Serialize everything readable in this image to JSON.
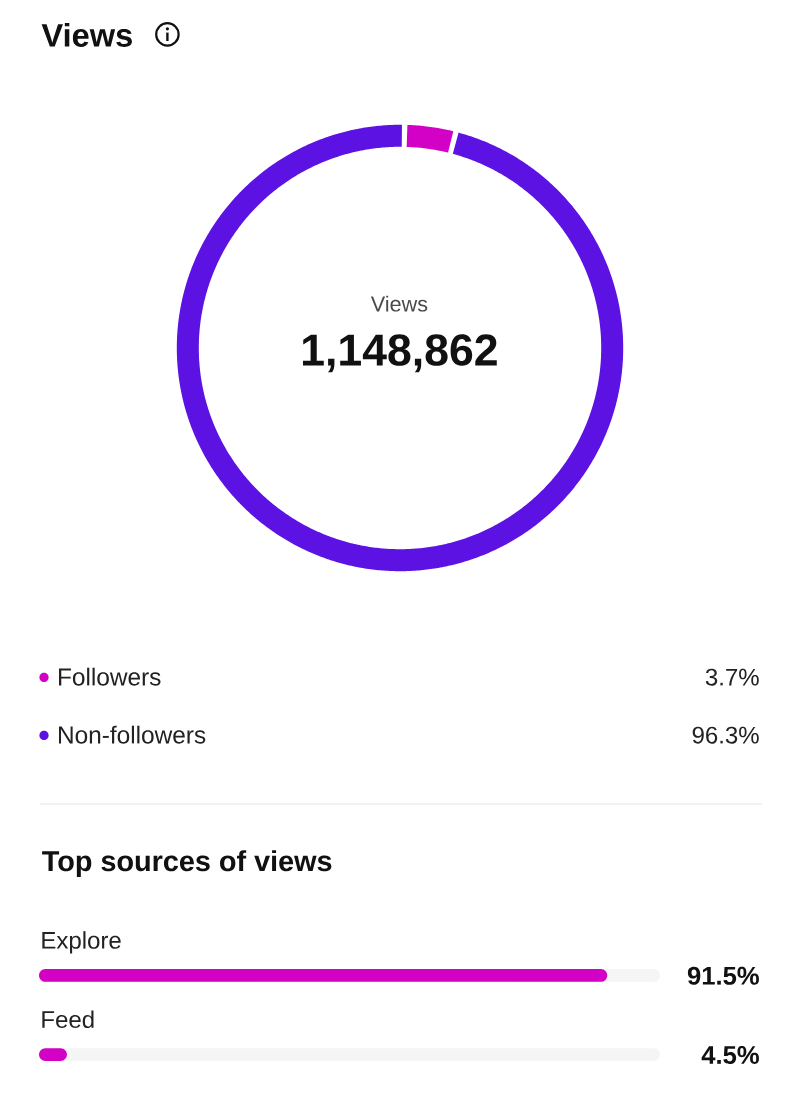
{
  "chart_data": [
    {
      "type": "donut",
      "title": "Views",
      "categories": [
        "Followers",
        "Non-followers"
      ],
      "values": [
        3.7,
        96.3
      ],
      "colors": [
        "#d300c5",
        "#5b12e3"
      ],
      "value_labels": [
        "3.7%",
        "96.3%"
      ],
      "annotations": [
        "Views",
        "1,148,862"
      ],
      "legend": "bottom"
    },
    {
      "type": "bar",
      "orientation": "horizontal",
      "title": "Top sources of views",
      "categories": [
        "Explore",
        "Feed"
      ],
      "values": [
        91.5,
        4.5
      ],
      "color": "#d300c5",
      "value_labels": [
        "91.5%",
        "4.5%"
      ],
      "xlim": [
        0,
        100
      ],
      "tick_labels": "y"
    }
  ]
}
